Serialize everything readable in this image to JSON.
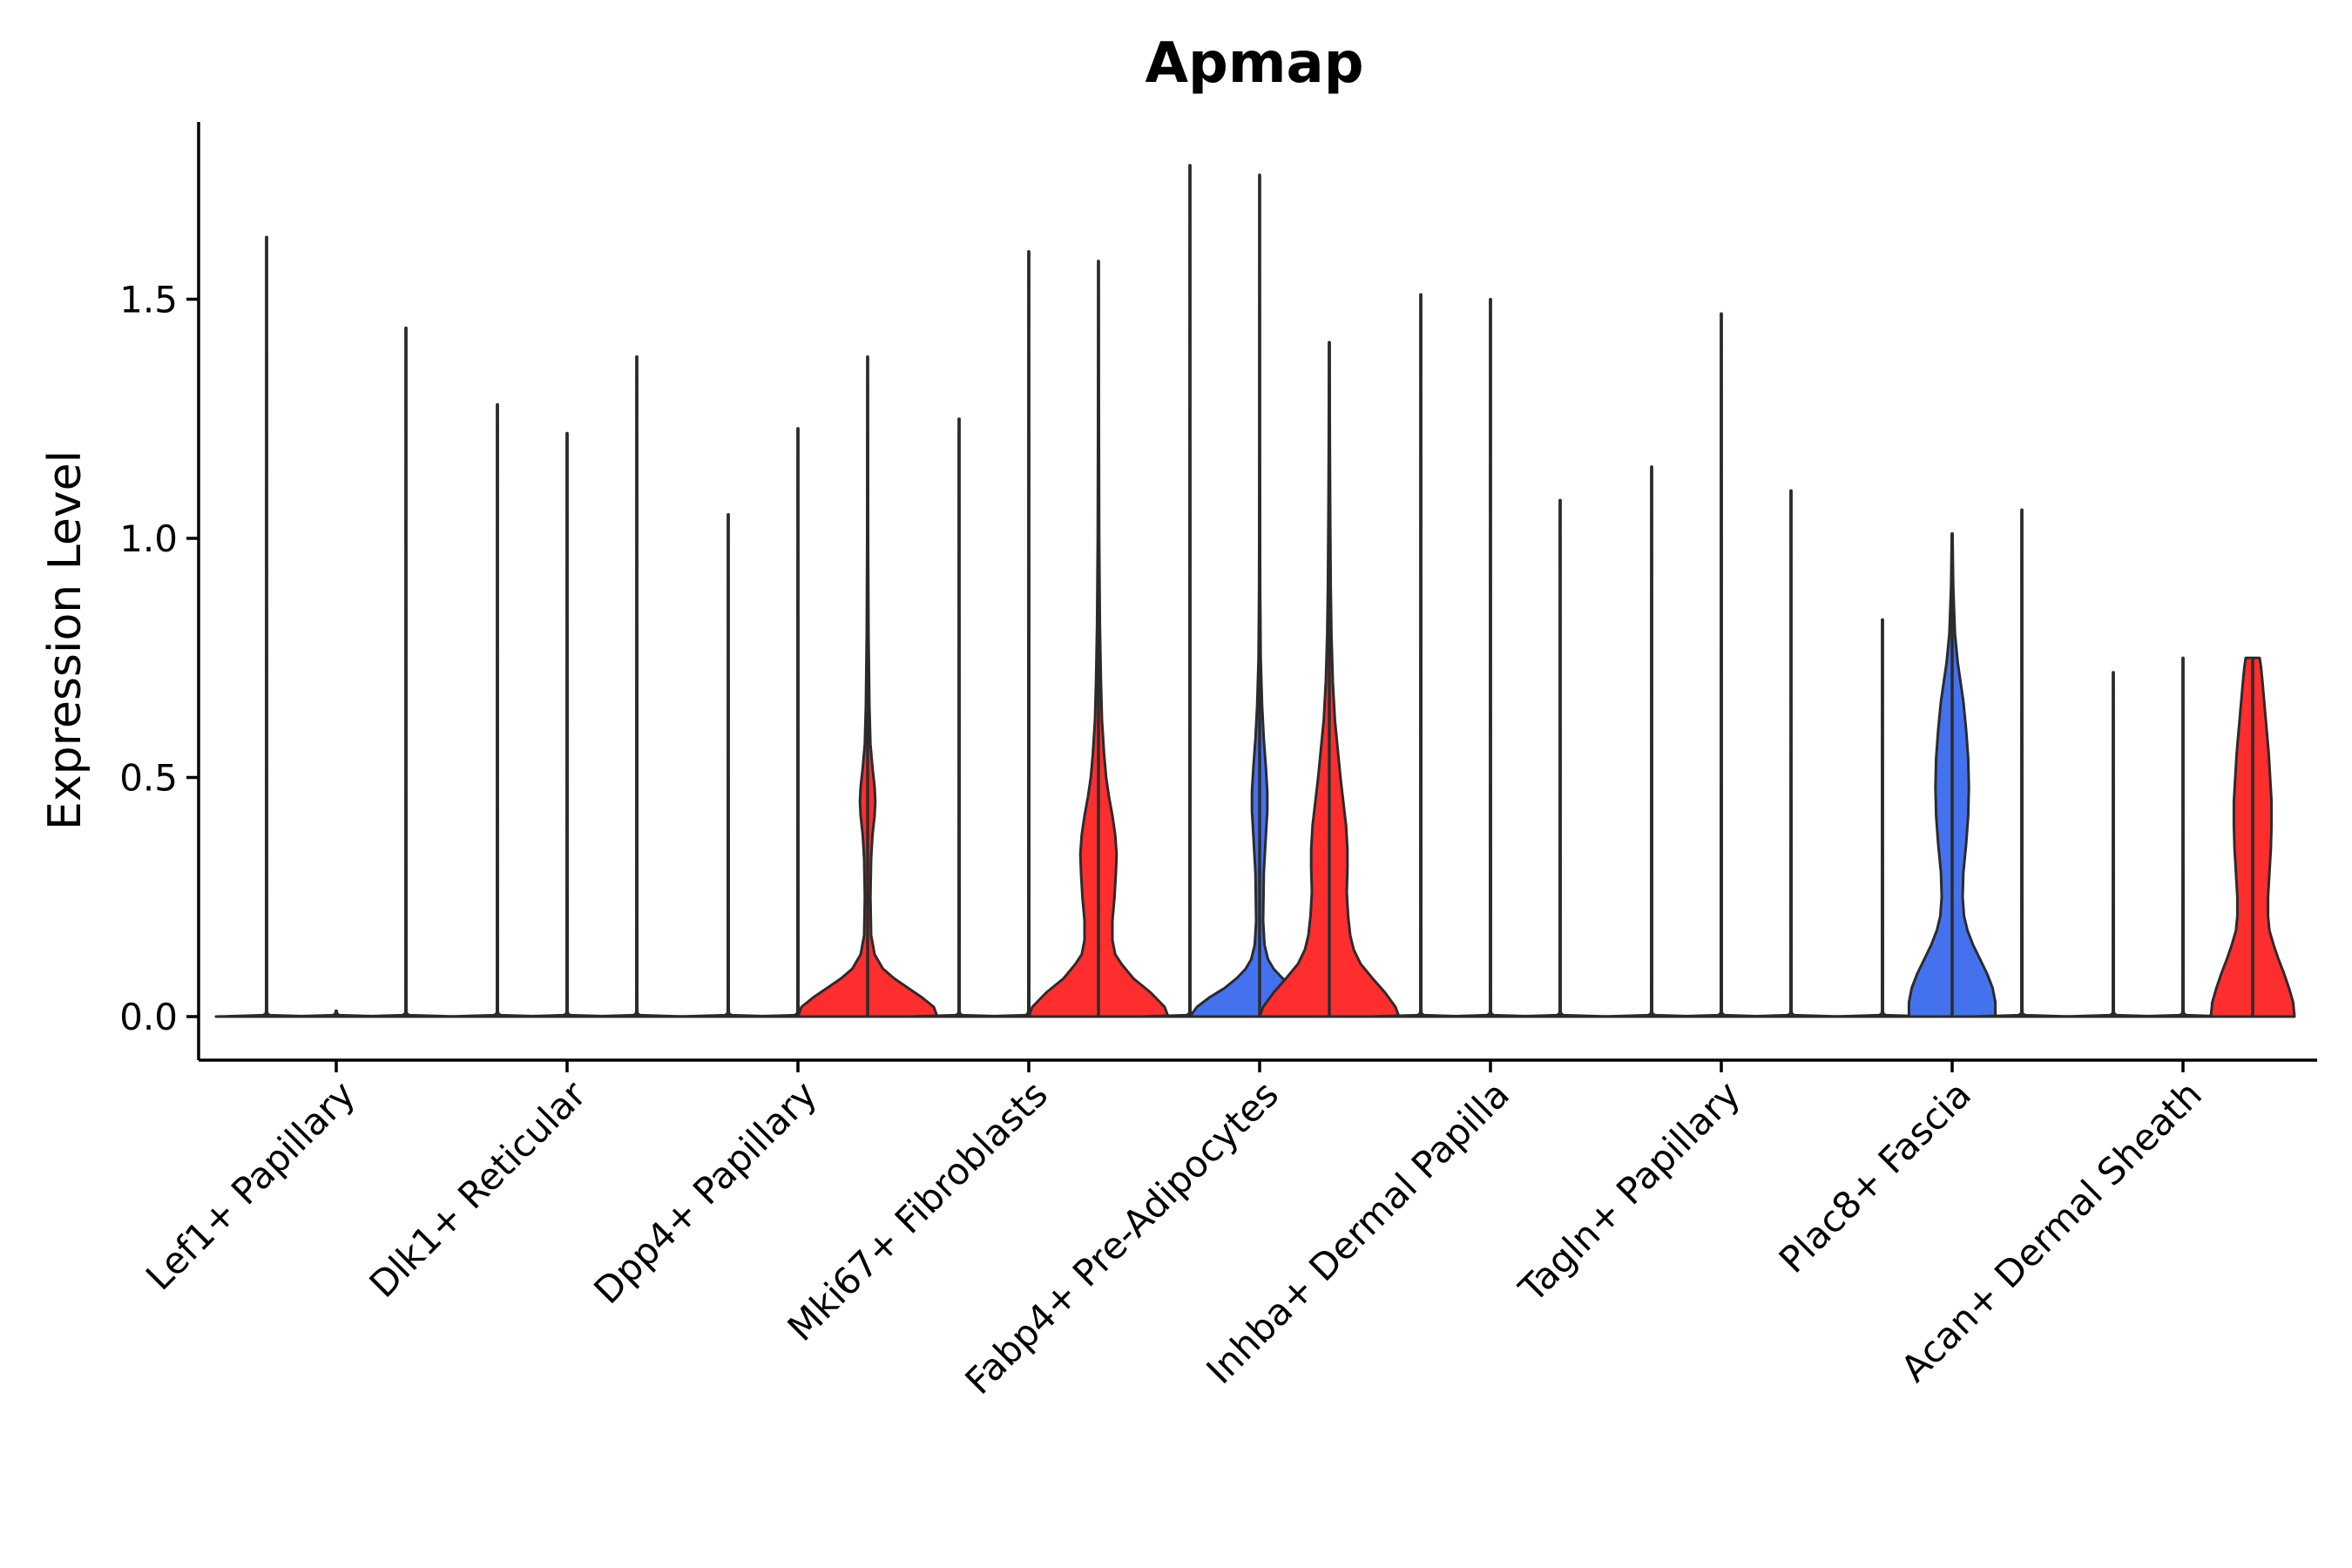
{
  "chart_data": {
    "type": "violin",
    "title": "Apmap",
    "xlabel": "",
    "ylabel": "Expression Level",
    "ylim": [
      -0.09,
      1.87
    ],
    "yticks": [
      0.0,
      0.5,
      1.0,
      1.5
    ],
    "ytick_labels": [
      "0.0",
      "0.5",
      "1.0",
      "1.5"
    ],
    "grid": false,
    "legend": "none",
    "colors": {
      "blue": "#4472ef",
      "red": "#ff2e2e",
      "outline": "#2b2b2b",
      "axis": "#000000"
    },
    "categories": [
      "Lef1+ Papillary",
      "Dlk1+ Reticular",
      "Dpp4+ Papillary",
      "Mki67+ Fibroblasts",
      "Fabp4+ Pre-Adipocytes",
      "Inhba+ Dermal Papilla",
      "Tagln+ Papillary",
      "Plac8+ Fascia",
      "Acan+ Dermal Sheath"
    ],
    "groups": [
      [
        {
          "max": 1.63,
          "fill": "white",
          "shape": "flat"
        },
        {
          "max": 0.0,
          "fill": "white",
          "shape": "flat"
        },
        {
          "max": 1.44,
          "fill": "white",
          "shape": "flat"
        }
      ],
      [
        {
          "max": 1.28,
          "fill": "white",
          "shape": "flat"
        },
        {
          "max": 1.22,
          "fill": "white",
          "shape": "flat"
        },
        {
          "max": 1.38,
          "fill": "white",
          "shape": "flat"
        }
      ],
      [
        {
          "max": 1.05,
          "fill": "white",
          "shape": "flat"
        },
        {
          "max": 1.23,
          "fill": "white",
          "shape": "flat"
        },
        {
          "max": 1.38,
          "fill": "red",
          "profile": [
            [
              0.0,
              1.0
            ],
            [
              0.02,
              0.95
            ],
            [
              0.04,
              0.78
            ],
            [
              0.06,
              0.58
            ],
            [
              0.08,
              0.38
            ],
            [
              0.1,
              0.22
            ],
            [
              0.13,
              0.1
            ],
            [
              0.17,
              0.05
            ],
            [
              0.25,
              0.04
            ],
            [
              0.33,
              0.05
            ],
            [
              0.38,
              0.07
            ],
            [
              0.42,
              0.1
            ],
            [
              0.45,
              0.11
            ],
            [
              0.48,
              0.1
            ],
            [
              0.52,
              0.07
            ],
            [
              0.57,
              0.04
            ],
            [
              0.65,
              0.025
            ],
            [
              0.8,
              0.012
            ],
            [
              1.0,
              0.006
            ],
            [
              1.38,
              0.003
            ]
          ]
        }
      ],
      [
        {
          "max": 1.25,
          "fill": "white",
          "shape": "flat"
        },
        {
          "max": 1.6,
          "fill": "white",
          "shape": "flat"
        },
        {
          "max": 1.58,
          "fill": "red",
          "profile": [
            [
              0.0,
              1.0
            ],
            [
              0.02,
              0.95
            ],
            [
              0.05,
              0.75
            ],
            [
              0.08,
              0.5
            ],
            [
              0.11,
              0.33
            ],
            [
              0.13,
              0.24
            ],
            [
              0.16,
              0.2
            ],
            [
              0.2,
              0.2
            ],
            [
              0.25,
              0.23
            ],
            [
              0.3,
              0.25
            ],
            [
              0.34,
              0.26
            ],
            [
              0.38,
              0.24
            ],
            [
              0.42,
              0.2
            ],
            [
              0.46,
              0.15
            ],
            [
              0.5,
              0.11
            ],
            [
              0.55,
              0.08
            ],
            [
              0.62,
              0.05
            ],
            [
              0.7,
              0.035
            ],
            [
              0.82,
              0.02
            ],
            [
              1.0,
              0.01
            ],
            [
              1.3,
              0.005
            ],
            [
              1.58,
              0.003
            ]
          ]
        }
      ],
      [
        {
          "max": 1.78,
          "fill": "white",
          "shape": "flat"
        },
        {
          "max": 1.76,
          "fill": "blue",
          "profile": [
            [
              0.0,
              1.0
            ],
            [
              0.02,
              0.9
            ],
            [
              0.04,
              0.72
            ],
            [
              0.06,
              0.5
            ],
            [
              0.08,
              0.33
            ],
            [
              0.1,
              0.2
            ],
            [
              0.12,
              0.12
            ],
            [
              0.15,
              0.07
            ],
            [
              0.2,
              0.05
            ],
            [
              0.3,
              0.06
            ],
            [
              0.38,
              0.09
            ],
            [
              0.43,
              0.11
            ],
            [
              0.47,
              0.11
            ],
            [
              0.52,
              0.09
            ],
            [
              0.58,
              0.06
            ],
            [
              0.65,
              0.035
            ],
            [
              0.75,
              0.015
            ],
            [
              0.9,
              0.008
            ],
            [
              1.2,
              0.004
            ],
            [
              1.76,
              0.002
            ]
          ]
        },
        {
          "max": 1.41,
          "fill": "red",
          "profile": [
            [
              0.0,
              1.0
            ],
            [
              0.02,
              0.95
            ],
            [
              0.05,
              0.8
            ],
            [
              0.08,
              0.62
            ],
            [
              0.11,
              0.45
            ],
            [
              0.14,
              0.35
            ],
            [
              0.17,
              0.3
            ],
            [
              0.21,
              0.27
            ],
            [
              0.26,
              0.25
            ],
            [
              0.31,
              0.26
            ],
            [
              0.35,
              0.26
            ],
            [
              0.4,
              0.24
            ],
            [
              0.45,
              0.2
            ],
            [
              0.5,
              0.16
            ],
            [
              0.56,
              0.12
            ],
            [
              0.62,
              0.08
            ],
            [
              0.7,
              0.05
            ],
            [
              0.8,
              0.03
            ],
            [
              0.9,
              0.02
            ],
            [
              1.05,
              0.012
            ],
            [
              1.2,
              0.007
            ],
            [
              1.41,
              0.004
            ]
          ]
        }
      ],
      [
        {
          "max": 1.51,
          "fill": "white",
          "shape": "flat"
        },
        {
          "max": 1.5,
          "fill": "white",
          "shape": "flat"
        },
        {
          "max": 1.08,
          "fill": "white",
          "shape": "flat"
        }
      ],
      [
        {
          "max": 1.15,
          "fill": "white",
          "shape": "flat"
        },
        {
          "max": 1.47,
          "fill": "white",
          "shape": "flat"
        },
        {
          "max": 1.1,
          "fill": "white",
          "shape": "flat"
        }
      ],
      [
        {
          "max": 0.83,
          "fill": "white",
          "shape": "flat"
        },
        {
          "max": 1.01,
          "fill": "blue",
          "profile": [
            [
              0.0,
              0.62
            ],
            [
              0.03,
              0.62
            ],
            [
              0.06,
              0.58
            ],
            [
              0.09,
              0.5
            ],
            [
              0.12,
              0.4
            ],
            [
              0.15,
              0.3
            ],
            [
              0.18,
              0.22
            ],
            [
              0.21,
              0.17
            ],
            [
              0.25,
              0.15
            ],
            [
              0.3,
              0.16
            ],
            [
              0.36,
              0.2
            ],
            [
              0.42,
              0.23
            ],
            [
              0.48,
              0.24
            ],
            [
              0.54,
              0.23
            ],
            [
              0.6,
              0.2
            ],
            [
              0.66,
              0.16
            ],
            [
              0.7,
              0.12
            ],
            [
              0.74,
              0.08
            ],
            [
              0.8,
              0.04
            ],
            [
              0.9,
              0.015
            ],
            [
              1.01,
              0.005
            ]
          ]
        },
        {
          "max": 1.06,
          "fill": "white",
          "shape": "flat"
        }
      ],
      [
        {
          "max": 0.72,
          "fill": "white",
          "shape": "flat"
        },
        {
          "max": 0.75,
          "fill": "white",
          "shape": "flat"
        },
        {
          "max": 0.75,
          "fill": "red",
          "profile": [
            [
              0.0,
              0.6
            ],
            [
              0.03,
              0.58
            ],
            [
              0.06,
              0.52
            ],
            [
              0.09,
              0.45
            ],
            [
              0.12,
              0.37
            ],
            [
              0.15,
              0.3
            ],
            [
              0.18,
              0.24
            ],
            [
              0.21,
              0.22
            ],
            [
              0.25,
              0.22
            ],
            [
              0.3,
              0.24
            ],
            [
              0.35,
              0.26
            ],
            [
              0.4,
              0.27
            ],
            [
              0.45,
              0.27
            ],
            [
              0.5,
              0.25
            ],
            [
              0.55,
              0.23
            ],
            [
              0.6,
              0.2
            ],
            [
              0.65,
              0.17
            ],
            [
              0.7,
              0.14
            ],
            [
              0.73,
              0.12
            ],
            [
              0.75,
              0.1
            ]
          ]
        }
      ]
    ]
  }
}
